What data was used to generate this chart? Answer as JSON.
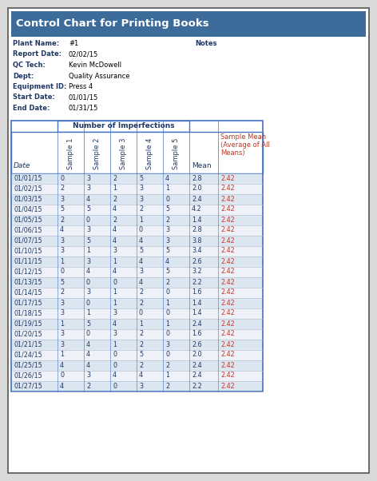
{
  "title": "Control Chart for Printing Books",
  "title_bg": "#3d6b9a",
  "title_color": "#ffffff",
  "info_labels": [
    "Plant Name:",
    "Report Date:",
    "QC Tech:",
    "Dept:",
    "Equipment ID:",
    "Start Date:",
    "End Date:"
  ],
  "info_values": [
    "#1",
    "02/02/15",
    "Kevin McDowell",
    "Quality Assurance",
    "Press 4",
    "01/01/15",
    "01/31/15"
  ],
  "notes_label": "Notes",
  "header_group": "Number of Imperfections",
  "col_headers": [
    "Date",
    "Sample 1",
    "Sample 2",
    "Sample 3",
    "Sample 4",
    "Sample 5",
    "Mean",
    "Sample Mean\n(Average of All\nMeans)"
  ],
  "rows": [
    [
      "01/01/15",
      0,
      3,
      2,
      5,
      4,
      "2.8",
      "2.42"
    ],
    [
      "01/02/15",
      2,
      3,
      1,
      3,
      1,
      "2.0",
      "2.42"
    ],
    [
      "01/03/15",
      3,
      4,
      2,
      3,
      0,
      "2.4",
      "2.42"
    ],
    [
      "01/04/15",
      5,
      5,
      4,
      2,
      5,
      "4.2",
      "2.42"
    ],
    [
      "01/05/15",
      2,
      0,
      2,
      1,
      2,
      "1.4",
      "2.42"
    ],
    [
      "01/06/15",
      4,
      3,
      4,
      0,
      3,
      "2.8",
      "2.42"
    ],
    [
      "01/07/15",
      3,
      5,
      4,
      4,
      3,
      "3.8",
      "2.42"
    ],
    [
      "01/10/15",
      3,
      1,
      3,
      5,
      5,
      "3.4",
      "2.42"
    ],
    [
      "01/11/15",
      1,
      3,
      1,
      4,
      4,
      "2.6",
      "2.42"
    ],
    [
      "01/12/15",
      0,
      4,
      4,
      3,
      5,
      "3.2",
      "2.42"
    ],
    [
      "01/13/15",
      5,
      0,
      0,
      4,
      2,
      "2.2",
      "2.42"
    ],
    [
      "01/14/15",
      2,
      3,
      1,
      2,
      0,
      "1.6",
      "2.42"
    ],
    [
      "01/17/15",
      3,
      0,
      1,
      2,
      1,
      "1.4",
      "2.42"
    ],
    [
      "01/18/15",
      3,
      1,
      3,
      0,
      0,
      "1.4",
      "2.42"
    ],
    [
      "01/19/15",
      1,
      5,
      4,
      1,
      1,
      "2.4",
      "2.42"
    ],
    [
      "01/20/15",
      3,
      0,
      3,
      2,
      0,
      "1.6",
      "2.42"
    ],
    [
      "01/21/15",
      3,
      4,
      1,
      2,
      3,
      "2.6",
      "2.42"
    ],
    [
      "01/24/15",
      1,
      4,
      0,
      5,
      0,
      "2.0",
      "2.42"
    ],
    [
      "01/25/15",
      4,
      4,
      0,
      2,
      2,
      "2.4",
      "2.42"
    ],
    [
      "01/26/15",
      0,
      3,
      4,
      4,
      1,
      "2.4",
      "2.42"
    ],
    [
      "01/27/15",
      4,
      2,
      0,
      3,
      2,
      "2.2",
      "2.42"
    ]
  ],
  "row_alt_colors": [
    "#dce6f1",
    "#eef2f8"
  ],
  "border_color": "#4472c4",
  "text_color_dark": "#1f3864",
  "text_color_red": "#c0392b",
  "info_label_color": "#1f3864",
  "page_bg": "#ffffff",
  "outer_bg": "#d9d9d9"
}
